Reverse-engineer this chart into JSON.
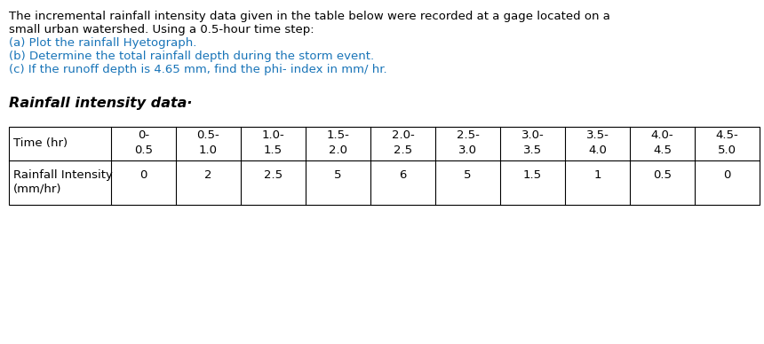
{
  "intro_text_line1": "The incremental rainfall intensity data given in the table below were recorded at a gage located on a",
  "intro_text_line2": "small urban watershed. Using a 0.5-hour time step:",
  "item_a": "(a) Plot the rainfall Hyetograph.",
  "item_b": "(b) Determine the total rainfall depth during the storm event.",
  "item_c": "(c) If the runoff depth is 4.65 mm, find the phi- index in mm/ hr.",
  "section_title": "Rainfall intensity data·",
  "col_header_row1": [
    "0-",
    "0.5-",
    "1.0-",
    "1.5-",
    "2.0-",
    "2.5-",
    "3.0-",
    "3.5-",
    "4.0-",
    "4.5-"
  ],
  "col_header_row2": [
    "0.5",
    "1.0",
    "1.5",
    "2.0",
    "2.5",
    "3.0",
    "3.5",
    "4.0",
    "4.5",
    "5.0"
  ],
  "row_label_line1": "Rainfall Intensity",
  "row_label_line2": "(mm/hr)",
  "intensity_values": [
    "0",
    "2",
    "2.5",
    "5",
    "6",
    "5",
    "1.5",
    "1",
    "0.5",
    "0"
  ],
  "time_label": "Time (hr)",
  "text_color_black": "#000000",
  "text_color_blue": "#1874b8",
  "bg_color": "#ffffff",
  "figsize": [
    8.6,
    3.88
  ],
  "dpi": 100
}
